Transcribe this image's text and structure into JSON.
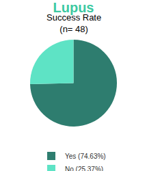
{
  "chart_data": {
    "type": "pie",
    "title": "Lupus",
    "subtitle": [
      "Success Rate",
      "(n= 48)"
    ],
    "categories": [
      "Yes (74.63%)",
      "No (25.37%)"
    ],
    "values": [
      74.63,
      25.37
    ],
    "colors": [
      "#2e7d6f",
      "#5ee3c5"
    ],
    "legend": "bottom"
  }
}
